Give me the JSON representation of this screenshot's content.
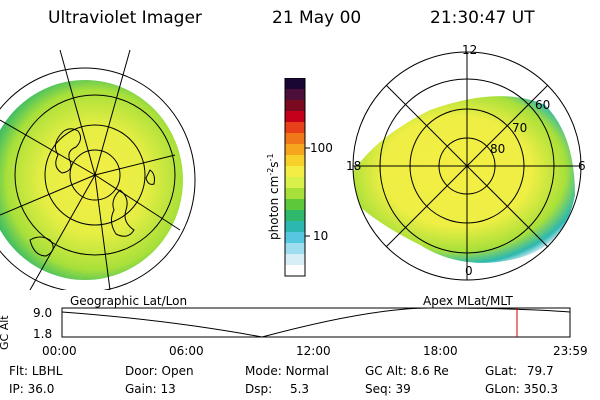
{
  "header": {
    "instrument": "Ultraviolet Imager",
    "date": "21 May 00",
    "time": "21:30:47 UT"
  },
  "colorbar": {
    "label": "photon cm",
    "label_exp": "-2",
    "label_s": "s",
    "label_s_exp": "-1",
    "ticks": [
      {
        "value": 100,
        "label": "100"
      },
      {
        "value": 10,
        "label": "10"
      }
    ],
    "scale": "log",
    "colors": [
      "#1a0633",
      "#4b0f3a",
      "#7a0a1f",
      "#c4001a",
      "#e8401a",
      "#f07818",
      "#f6a51e",
      "#f7d12a",
      "#f4ee44",
      "#d9f04a",
      "#a8e03a",
      "#5cc83a",
      "#2fb86a",
      "#2cb7b0",
      "#55c8e0",
      "#9edcef",
      "#d8eef6",
      "#ffffff"
    ]
  },
  "geographic": {
    "title": "Geographic Lat/Lon"
  },
  "polar": {
    "title": "Apex MLat/MLT",
    "mlt_labels": [
      "12",
      "18",
      "6",
      "0"
    ],
    "lat_labels": [
      "60",
      "70",
      "80"
    ]
  },
  "altitude_plot": {
    "axis_label": "GC Alt",
    "y_ticks": [
      "9.0",
      "1.8"
    ],
    "x_ticks": [
      "00:00",
      "06:00",
      "12:00",
      "18:00",
      "23:59"
    ],
    "marker_color": "#d00000"
  },
  "info": {
    "filter": {
      "label": "Flt:",
      "value": "LBHL"
    },
    "ip": {
      "label": "IP:",
      "value": "36.0"
    },
    "door": {
      "label": "Door:",
      "value": "Open"
    },
    "gain": {
      "label": "Gain:",
      "value": "13"
    },
    "mode": {
      "label": "Mode:",
      "value": "Normal"
    },
    "dsp": {
      "label": "Dsp:",
      "value": "5.3"
    },
    "gc_alt": {
      "label": "GC Alt:",
      "value": "8.6 Re"
    },
    "seq": {
      "label": "Seq:",
      "value": "39"
    },
    "glat": {
      "label": "GLat:",
      "value": "79.7"
    },
    "glon": {
      "label": "GLon:",
      "value": "350.3"
    }
  }
}
